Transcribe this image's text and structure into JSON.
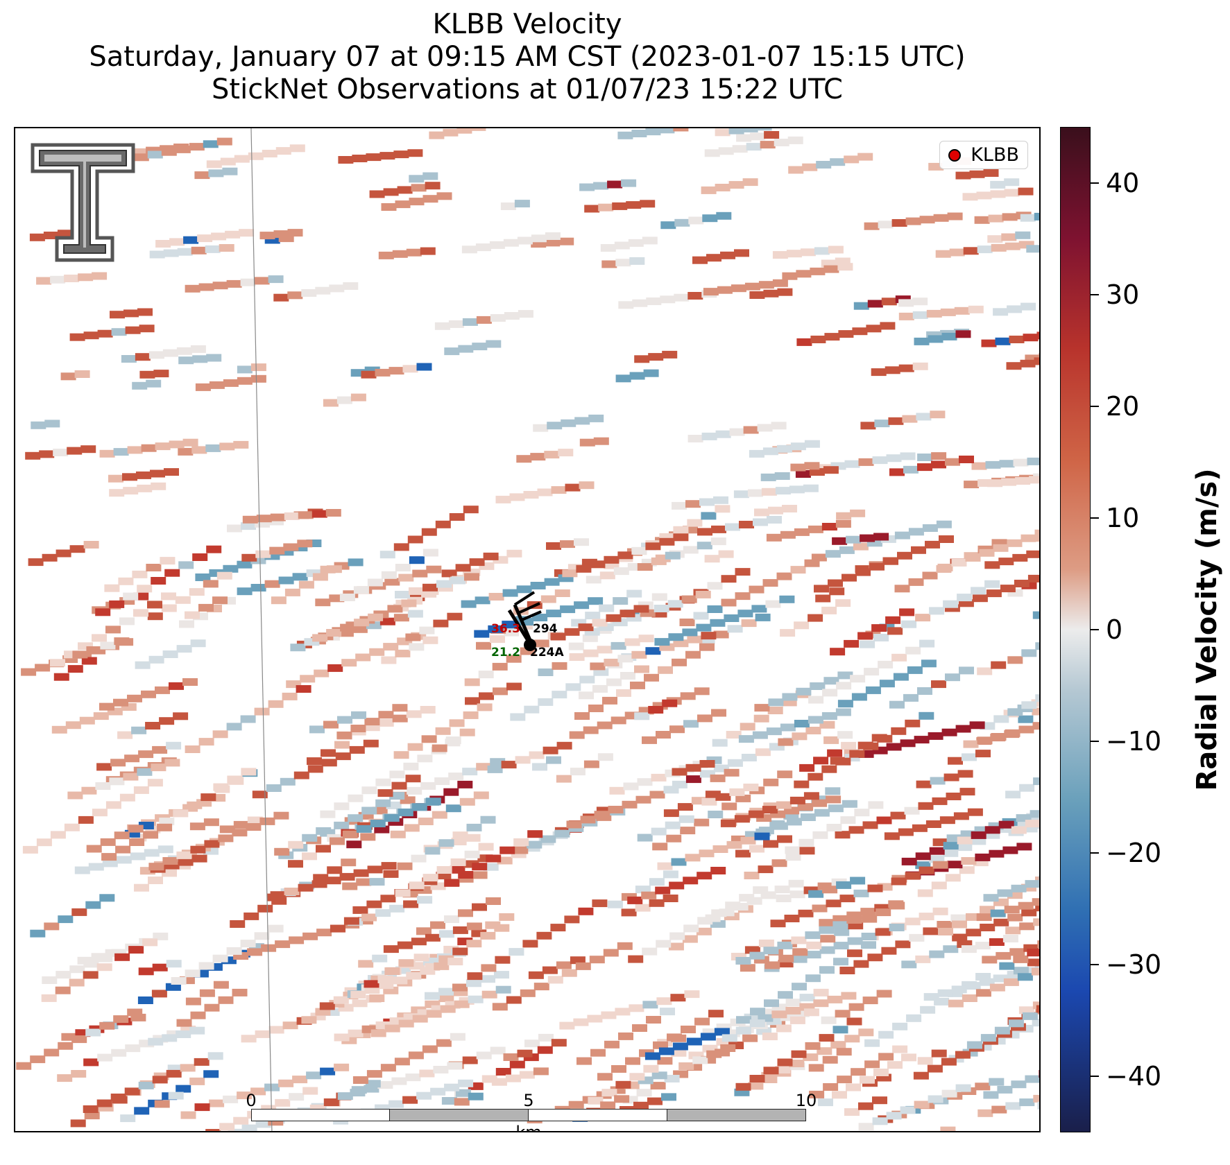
{
  "title": {
    "line1": "KLBB Velocity",
    "line2": "Saturday, January 07 at 09:15 AM CST (2023-01-07 15:15 UTC)",
    "line3": "StickNet Observations at 01/07/23 15:22 UTC"
  },
  "legend": {
    "label": "KLBB",
    "marker_color": "#e00000"
  },
  "logo": {
    "name": "Texas Tech double-T logo"
  },
  "scalebar": {
    "ticks": [
      "0",
      "5",
      "10"
    ],
    "unit": "km"
  },
  "colorbar": {
    "label": "Radial Velocity (m/s)",
    "range": [
      -45,
      45
    ],
    "ticks": [
      "40",
      "30",
      "20",
      "10",
      "0",
      "−10",
      "−20",
      "−30",
      "−40"
    ],
    "colors": [
      "#3a0f1c",
      "#b8332c",
      "#dd9c84",
      "#ececec",
      "#6aa0bb",
      "#1b48b0",
      "#1a1f4a"
    ]
  },
  "stations": [
    {
      "id": "294",
      "temperature": "36.3",
      "temperature_color": "#c00000"
    },
    {
      "id": "224A",
      "dewpoint": "21.2",
      "dewpoint_color": "#006400"
    }
  ]
}
